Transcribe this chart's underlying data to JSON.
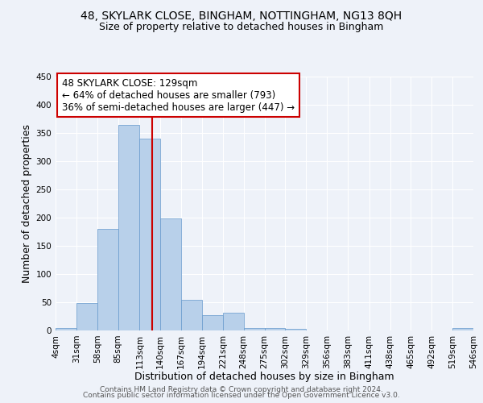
{
  "title_line1": "48, SKYLARK CLOSE, BINGHAM, NOTTINGHAM, NG13 8QH",
  "title_line2": "Size of property relative to detached houses in Bingham",
  "xlabel": "Distribution of detached houses by size in Bingham",
  "ylabel": "Number of detached properties",
  "bin_labels": [
    "4sqm",
    "31sqm",
    "58sqm",
    "85sqm",
    "113sqm",
    "140sqm",
    "167sqm",
    "194sqm",
    "221sqm",
    "248sqm",
    "275sqm",
    "302sqm",
    "329sqm",
    "356sqm",
    "383sqm",
    "411sqm",
    "438sqm",
    "465sqm",
    "492sqm",
    "519sqm",
    "546sqm"
  ],
  "bin_edges": [
    4,
    31,
    58,
    85,
    113,
    140,
    167,
    194,
    221,
    248,
    275,
    302,
    329,
    356,
    383,
    411,
    438,
    465,
    492,
    519,
    546
  ],
  "bar_heights": [
    4,
    48,
    180,
    365,
    340,
    198,
    55,
    27,
    32,
    5,
    5,
    3,
    0,
    0,
    0,
    0,
    0,
    0,
    0,
    4
  ],
  "bar_color": "#b8d0ea",
  "bar_edge_color": "#6699cc",
  "vline_x": 129,
  "vline_color": "#cc0000",
  "annotation_title": "48 SKYLARK CLOSE: 129sqm",
  "annotation_line2": "← 64% of detached houses are smaller (793)",
  "annotation_line3": "36% of semi-detached houses are larger (447) →",
  "annotation_box_color": "#ffffff",
  "annotation_border_color": "#cc0000",
  "ylim": [
    0,
    450
  ],
  "yticks": [
    0,
    50,
    100,
    150,
    200,
    250,
    300,
    350,
    400,
    450
  ],
  "footer_line1": "Contains HM Land Registry data © Crown copyright and database right 2024.",
  "footer_line2": "Contains public sector information licensed under the Open Government Licence v3.0.",
  "background_color": "#eef2f9",
  "grid_color": "#ffffff",
  "title_fontsize": 10,
  "subtitle_fontsize": 9,
  "axis_label_fontsize": 9,
  "tick_fontsize": 7.5,
  "annotation_fontsize": 8.5,
  "footer_fontsize": 6.5
}
